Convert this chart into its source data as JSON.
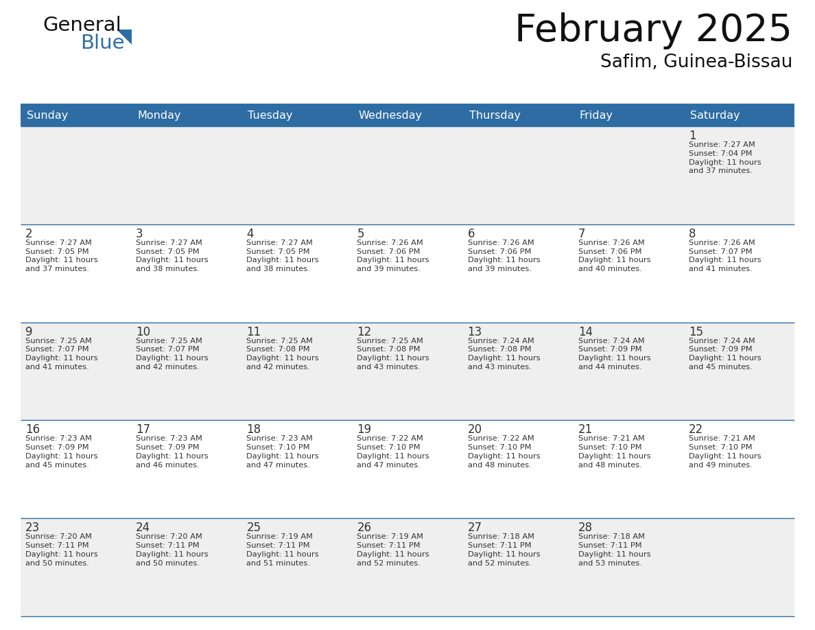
{
  "title": "February 2025",
  "subtitle": "Safim, Guinea-Bissau",
  "days_of_week": [
    "Sunday",
    "Monday",
    "Tuesday",
    "Wednesday",
    "Thursday",
    "Friday",
    "Saturday"
  ],
  "header_bg": "#2E6DA4",
  "header_text": "#FFFFFF",
  "cell_bg_light": "#EFEFEF",
  "cell_bg_white": "#FFFFFF",
  "cell_text": "#333333",
  "day_num_color": "#333333",
  "border_color": "#2E6DA4",
  "title_color": "#111111",
  "subtitle_color": "#111111",
  "logo_general_color": "#111111",
  "logo_blue_color": "#2E6DA4",
  "calendar": [
    [
      {
        "day": null,
        "info": null
      },
      {
        "day": null,
        "info": null
      },
      {
        "day": null,
        "info": null
      },
      {
        "day": null,
        "info": null
      },
      {
        "day": null,
        "info": null
      },
      {
        "day": null,
        "info": null
      },
      {
        "day": 1,
        "info": "Sunrise: 7:27 AM\nSunset: 7:04 PM\nDaylight: 11 hours\nand 37 minutes."
      }
    ],
    [
      {
        "day": 2,
        "info": "Sunrise: 7:27 AM\nSunset: 7:05 PM\nDaylight: 11 hours\nand 37 minutes."
      },
      {
        "day": 3,
        "info": "Sunrise: 7:27 AM\nSunset: 7:05 PM\nDaylight: 11 hours\nand 38 minutes."
      },
      {
        "day": 4,
        "info": "Sunrise: 7:27 AM\nSunset: 7:05 PM\nDaylight: 11 hours\nand 38 minutes."
      },
      {
        "day": 5,
        "info": "Sunrise: 7:26 AM\nSunset: 7:06 PM\nDaylight: 11 hours\nand 39 minutes."
      },
      {
        "day": 6,
        "info": "Sunrise: 7:26 AM\nSunset: 7:06 PM\nDaylight: 11 hours\nand 39 minutes."
      },
      {
        "day": 7,
        "info": "Sunrise: 7:26 AM\nSunset: 7:06 PM\nDaylight: 11 hours\nand 40 minutes."
      },
      {
        "day": 8,
        "info": "Sunrise: 7:26 AM\nSunset: 7:07 PM\nDaylight: 11 hours\nand 41 minutes."
      }
    ],
    [
      {
        "day": 9,
        "info": "Sunrise: 7:25 AM\nSunset: 7:07 PM\nDaylight: 11 hours\nand 41 minutes."
      },
      {
        "day": 10,
        "info": "Sunrise: 7:25 AM\nSunset: 7:07 PM\nDaylight: 11 hours\nand 42 minutes."
      },
      {
        "day": 11,
        "info": "Sunrise: 7:25 AM\nSunset: 7:08 PM\nDaylight: 11 hours\nand 42 minutes."
      },
      {
        "day": 12,
        "info": "Sunrise: 7:25 AM\nSunset: 7:08 PM\nDaylight: 11 hours\nand 43 minutes."
      },
      {
        "day": 13,
        "info": "Sunrise: 7:24 AM\nSunset: 7:08 PM\nDaylight: 11 hours\nand 43 minutes."
      },
      {
        "day": 14,
        "info": "Sunrise: 7:24 AM\nSunset: 7:09 PM\nDaylight: 11 hours\nand 44 minutes."
      },
      {
        "day": 15,
        "info": "Sunrise: 7:24 AM\nSunset: 7:09 PM\nDaylight: 11 hours\nand 45 minutes."
      }
    ],
    [
      {
        "day": 16,
        "info": "Sunrise: 7:23 AM\nSunset: 7:09 PM\nDaylight: 11 hours\nand 45 minutes."
      },
      {
        "day": 17,
        "info": "Sunrise: 7:23 AM\nSunset: 7:09 PM\nDaylight: 11 hours\nand 46 minutes."
      },
      {
        "day": 18,
        "info": "Sunrise: 7:23 AM\nSunset: 7:10 PM\nDaylight: 11 hours\nand 47 minutes."
      },
      {
        "day": 19,
        "info": "Sunrise: 7:22 AM\nSunset: 7:10 PM\nDaylight: 11 hours\nand 47 minutes."
      },
      {
        "day": 20,
        "info": "Sunrise: 7:22 AM\nSunset: 7:10 PM\nDaylight: 11 hours\nand 48 minutes."
      },
      {
        "day": 21,
        "info": "Sunrise: 7:21 AM\nSunset: 7:10 PM\nDaylight: 11 hours\nand 48 minutes."
      },
      {
        "day": 22,
        "info": "Sunrise: 7:21 AM\nSunset: 7:10 PM\nDaylight: 11 hours\nand 49 minutes."
      }
    ],
    [
      {
        "day": 23,
        "info": "Sunrise: 7:20 AM\nSunset: 7:11 PM\nDaylight: 11 hours\nand 50 minutes."
      },
      {
        "day": 24,
        "info": "Sunrise: 7:20 AM\nSunset: 7:11 PM\nDaylight: 11 hours\nand 50 minutes."
      },
      {
        "day": 25,
        "info": "Sunrise: 7:19 AM\nSunset: 7:11 PM\nDaylight: 11 hours\nand 51 minutes."
      },
      {
        "day": 26,
        "info": "Sunrise: 7:19 AM\nSunset: 7:11 PM\nDaylight: 11 hours\nand 52 minutes."
      },
      {
        "day": 27,
        "info": "Sunrise: 7:18 AM\nSunset: 7:11 PM\nDaylight: 11 hours\nand 52 minutes."
      },
      {
        "day": 28,
        "info": "Sunrise: 7:18 AM\nSunset: 7:11 PM\nDaylight: 11 hours\nand 53 minutes."
      },
      {
        "day": null,
        "info": null
      }
    ]
  ],
  "row_bg": [
    "#EFEFEF",
    "#FFFFFF",
    "#EFEFEF",
    "#FFFFFF",
    "#EFEFEF"
  ]
}
